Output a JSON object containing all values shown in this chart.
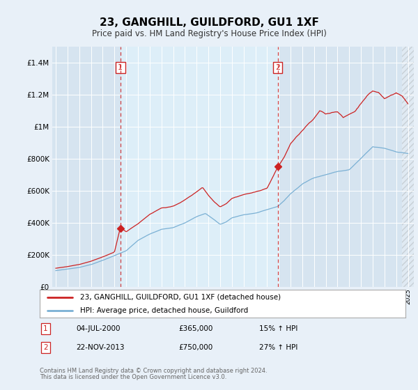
{
  "title": "23, GANGHILL, GUILDFORD, GU1 1XF",
  "subtitle": "Price paid vs. HM Land Registry's House Price Index (HPI)",
  "bg_color": "#e8f0f8",
  "plot_bg_color": "#d6e4f0",
  "between_bg_color": "#ddeef8",
  "hpi_color": "#7ab0d4",
  "price_color": "#cc2222",
  "vline_color": "#cc2222",
  "ylim": [
    0,
    1500000
  ],
  "yticks": [
    0,
    200000,
    400000,
    600000,
    800000,
    1000000,
    1200000,
    1400000
  ],
  "ytick_labels": [
    "£0",
    "£200K",
    "£400K",
    "£600K",
    "£800K",
    "£1M",
    "£1.2M",
    "£1.4M"
  ],
  "xstart_year": 1995,
  "xend_year": 2025,
  "marker1_year": 2000.5,
  "marker1_label": "1",
  "marker1_price": 365000,
  "marker1_date": "04-JUL-2000",
  "marker1_pct": "15% ↑ HPI",
  "marker2_year": 2013.9,
  "marker2_label": "2",
  "marker2_price": 750000,
  "marker2_date": "22-NOV-2013",
  "marker2_pct": "27% ↑ HPI",
  "legend_line1": "23, GANGHILL, GUILDFORD, GU1 1XF (detached house)",
  "legend_line2": "HPI: Average price, detached house, Guildford",
  "footer1": "Contains HM Land Registry data © Crown copyright and database right 2024.",
  "footer2": "This data is licensed under the Open Government Licence v3.0."
}
